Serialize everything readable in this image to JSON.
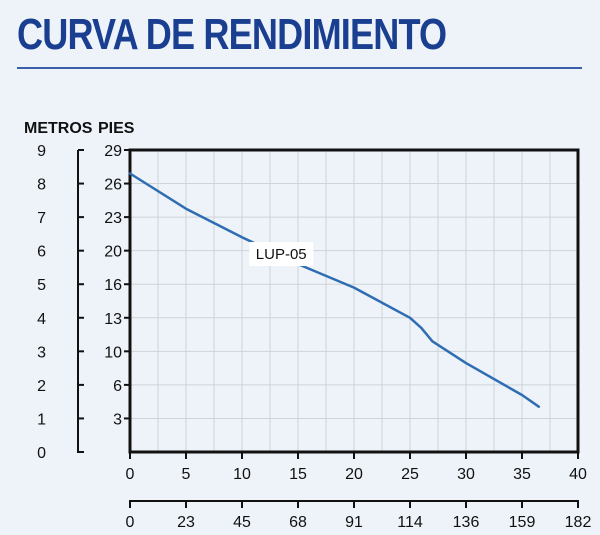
{
  "title": "CURVA DE RENDIMIENTO",
  "colors": {
    "title": "#1a3f91",
    "curve": "#2f6db3",
    "grid": "#cfd3d8",
    "background": "#eef3f9"
  },
  "chart_data": {
    "type": "line",
    "title": "CURVA DE RENDIMIENTO",
    "ylabel_left": "METROS",
    "ylabel_right": "PIES",
    "y_metros_ticks": [
      "0",
      "1",
      "2",
      "3",
      "4",
      "5",
      "6",
      "7",
      "8",
      "9"
    ],
    "y_pies_ticks": [
      "3",
      "6",
      "10",
      "13",
      "16",
      "20",
      "23",
      "26",
      "29"
    ],
    "x_lpm_ticks": [
      "0",
      "5",
      "10",
      "15",
      "20",
      "25",
      "30",
      "35",
      "40"
    ],
    "x_gph_ticks": [
      "0",
      "23",
      "45",
      "68",
      "91",
      "114",
      "136",
      "159",
      "182"
    ],
    "xlim": [
      0,
      40
    ],
    "ylim": [
      0,
      9
    ],
    "grid": true,
    "series": [
      {
        "name": "LUP-05",
        "x": [
          0,
          5,
          10,
          15,
          20,
          25,
          26,
          27,
          30,
          35,
          36.5
        ],
        "y": [
          8.3,
          7.25,
          6.4,
          5.6,
          4.9,
          4.0,
          3.7,
          3.3,
          2.65,
          1.7,
          1.35
        ]
      }
    ]
  }
}
